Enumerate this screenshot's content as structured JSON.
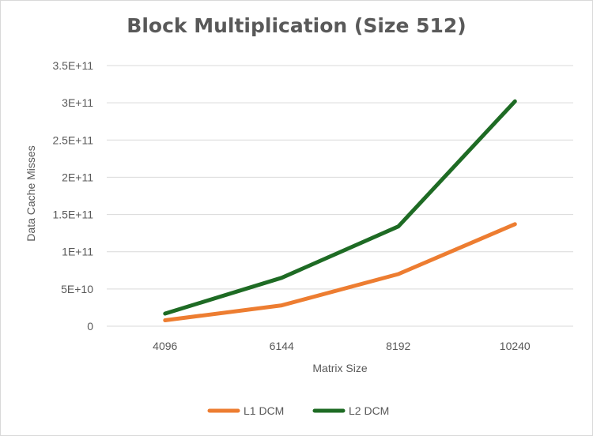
{
  "chart_data": {
    "type": "line",
    "title": "Block Multiplication (Size 512)",
    "xlabel": "Matrix Size",
    "ylabel": "Data Cache Misses",
    "categories": [
      "4096",
      "6144",
      "8192",
      "10240"
    ],
    "ylim": [
      0,
      350000000000
    ],
    "yticks": [
      {
        "value": 0,
        "label": "0"
      },
      {
        "value": 50000000000,
        "label": "5E+10"
      },
      {
        "value": 100000000000,
        "label": "1E+11"
      },
      {
        "value": 150000000000,
        "label": "1.5E+11"
      },
      {
        "value": 200000000000,
        "label": "2E+11"
      },
      {
        "value": 250000000000,
        "label": "2.5E+11"
      },
      {
        "value": 300000000000,
        "label": "3E+11"
      },
      {
        "value": 350000000000,
        "label": "3.5E+11"
      }
    ],
    "grid": true,
    "legend_position": "bottom",
    "series": [
      {
        "name": "L1 DCM",
        "color": "#ed7d31",
        "values": [
          8000000000,
          28000000000,
          70000000000,
          137000000000
        ]
      },
      {
        "name": "L2 DCM",
        "color": "#1e6b24",
        "values": [
          17000000000,
          65000000000,
          134000000000,
          302000000000
        ]
      }
    ]
  }
}
